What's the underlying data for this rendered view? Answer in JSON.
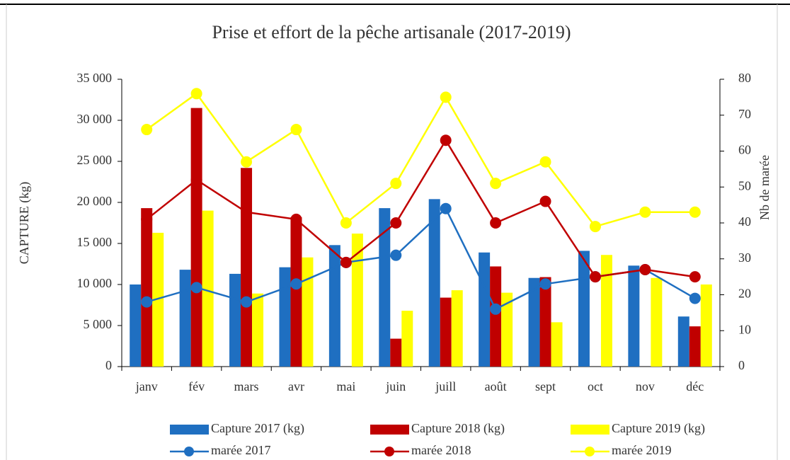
{
  "chart_data": {
    "type": "bar-line",
    "title": "Prise et effort de la pêche artisanale (2017-2019)",
    "y_label": "CAPTURE (kg)",
    "y2_label": "Nb de marée",
    "categories": [
      "janv",
      "fév",
      "mars",
      "avr",
      "mai",
      "juin",
      "juill",
      "août",
      "sept",
      "oct",
      "nov",
      "déc"
    ],
    "series": [
      {
        "name": "Capture 2017 (kg)",
        "type": "bar",
        "color": "#1f6fc1",
        "values": [
          10000,
          11800,
          11300,
          12100,
          14800,
          19300,
          20400,
          13900,
          10800,
          14100,
          12300,
          6100
        ]
      },
      {
        "name": "Capture 2018 (kg)",
        "type": "bar",
        "color": "#c00000",
        "values": [
          19300,
          31500,
          24200,
          18200,
          0,
          3400,
          8400,
          12200,
          10900,
          0,
          0,
          4900
        ]
      },
      {
        "name": "Capture 2019 (kg)",
        "type": "bar",
        "color": "#ffff00",
        "values": [
          16300,
          19000,
          8900,
          13300,
          16200,
          6800,
          9300,
          9000,
          5400,
          13600,
          10800,
          10000
        ]
      },
      {
        "name": "marée 2017",
        "type": "line",
        "axis": "y2",
        "color": "#1f6fc1",
        "values": [
          18,
          22,
          18,
          23,
          29,
          31,
          44,
          16,
          23,
          25,
          27,
          19
        ]
      },
      {
        "name": "marée 2018",
        "type": "line",
        "axis": "y2",
        "color": "#c00000",
        "values": [
          41,
          52,
          43,
          41,
          29,
          40,
          63,
          40,
          46,
          25,
          27,
          25
        ]
      },
      {
        "name": "marée 2019",
        "type": "line",
        "axis": "y2",
        "color": "#ffff00",
        "values": [
          66,
          76,
          57,
          66,
          40,
          51,
          75,
          51,
          57,
          39,
          43,
          43
        ]
      }
    ],
    "ylim": [
      0,
      35000
    ],
    "yticks": [
      0,
      {
        "value": 5000,
        "label": "5 000"
      },
      {
        "value": 10000,
        "label": "10 000"
      },
      {
        "value": 15000,
        "label": "15 000"
      },
      {
        "value": 20000,
        "label": "20 000"
      },
      {
        "value": 25000,
        "label": "25 000"
      },
      {
        "value": 30000,
        "label": "30 000"
      },
      {
        "value": 35000,
        "label": "35 000"
      }
    ],
    "y2lim": [
      0,
      80
    ],
    "y2ticks": [
      0,
      10,
      20,
      30,
      40,
      50,
      60,
      70,
      80
    ]
  }
}
